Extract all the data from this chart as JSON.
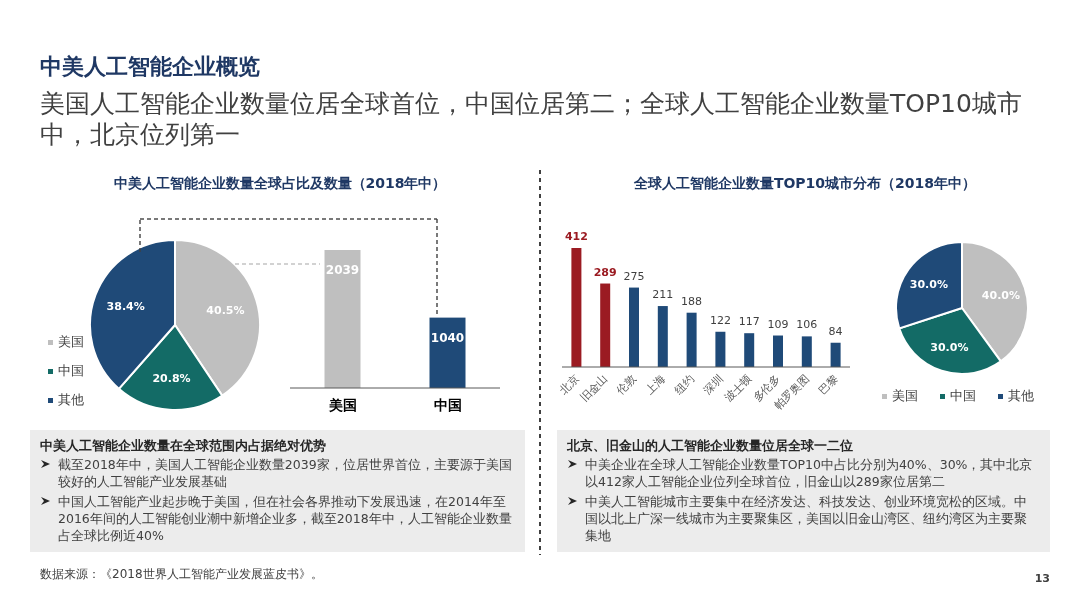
{
  "chart_data": [
    {
      "type": "other",
      "title": "中美人工智能企业概览",
      "subtitle": "美国人工智能企业数量位居全球首位，中国位居第二；全球人工智能企业数量TOP10城市中，北京位列第一",
      "annotations": [
        "数据来源：《2018世界人工智能产业发展蓝皮书》。",
        "13"
      ]
    },
    {
      "type": "pie",
      "title": "中美人工智能企业数量全球占比及数量（2018年中）",
      "categories": [
        "美国",
        "中国",
        "其他"
      ],
      "values": [
        40.5,
        20.8,
        38.4
      ],
      "colors": [
        "#bfbfbf",
        "#136b66",
        "#1f4a78"
      ],
      "legend": "left",
      "value_labels": [
        "40.5%",
        "20.8%",
        "38.4%"
      ]
    },
    {
      "type": "bar",
      "categories": [
        "美国",
        "中国"
      ],
      "values": [
        2039,
        1040
      ],
      "colors": [
        "#bfbfbf",
        "#1f4a78"
      ],
      "data_labels": true
    },
    {
      "type": "other",
      "title": "中美人工智能企业数量在全球范围内占据绝对优势",
      "annotations": [
        "截至2018年中，美国人工智能企业数量2039家，位居世界首位，主要源于美国较好的人工智能产业发展基础",
        "中国人工智能产业起步晚于美国，但在社会各界推动下发展迅速，在2014年至2016年间的人工智能创业潮中新增企业多，截至2018年中，人工智能企业数量占全球比例近40%"
      ]
    },
    {
      "type": "bar",
      "title": "全球人工智能企业数量TOP10城市分布（2018年中）",
      "categories": [
        "北京",
        "旧金山",
        "伦敦",
        "上海",
        "纽约",
        "深圳",
        "波士顿",
        "多伦多",
        "帕罗奥图",
        "巴黎"
      ],
      "values": [
        412,
        289,
        275,
        211,
        188,
        122,
        117,
        109,
        106,
        84
      ],
      "colors": [
        "#9b1b22",
        "#9b1b22",
        "#1f4a78",
        "#1f4a78",
        "#1f4a78",
        "#1f4a78",
        "#1f4a78",
        "#1f4a78",
        "#1f4a78",
        "#1f4a78"
      ],
      "data_labels": true
    },
    {
      "type": "pie",
      "categories": [
        "美国",
        "中国",
        "其他"
      ],
      "values": [
        40.0,
        30.0,
        30.0
      ],
      "colors": [
        "#bfbfbf",
        "#136b66",
        "#1f4a78"
      ],
      "legend": "bottom",
      "value_labels": [
        "40.0%",
        "30.0%",
        "30.0%"
      ]
    },
    {
      "type": "other",
      "title": "北京、旧金山的人工智能企业数量位居全球一二位",
      "annotations": [
        "中美企业在全球人工智能企业数量TOP10中占比分别为40%、30%，其中北京以412家人工智能企业位列全球首位，旧金山以289家位居第二",
        "中美人工智能城市主要集中在经济发达、科技发达、创业环境宽松的区域。中国以北上广深一线城市为主要聚集区，美国以旧金山湾区、纽约湾区为主要聚集地"
      ]
    }
  ]
}
